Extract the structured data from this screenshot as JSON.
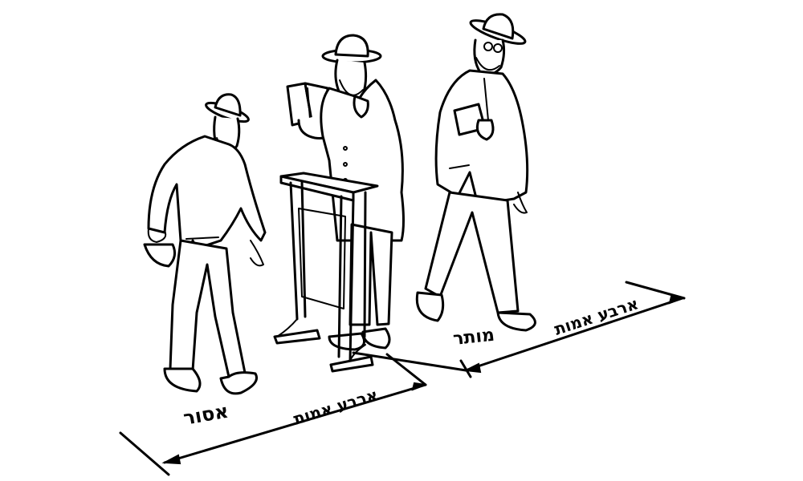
{
  "labels": {
    "forbidden": "אסור",
    "permitted": "מותר",
    "four_cubits_left": "ארבע אמות",
    "four_cubits_right": "ארבע אמות"
  },
  "figures": {
    "left_person": "walking-man",
    "middle_person": "praying-man",
    "right_person": "walking-man-with-book",
    "stand": "shtender-lectern"
  }
}
